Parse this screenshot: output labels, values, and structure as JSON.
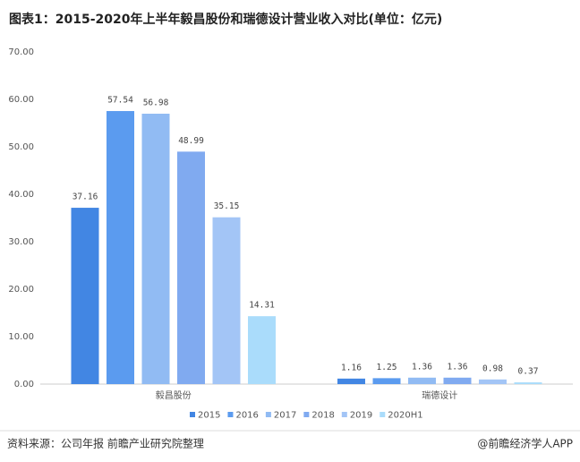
{
  "chart_data": {
    "type": "bar",
    "title": "图表1：2015-2020年上半年毅昌股份和瑞德设计营业收入对比(单位：亿元)",
    "categories": [
      "毅昌股份",
      "瑞德设计"
    ],
    "series": [
      {
        "name": "2015",
        "color": "#4286e3",
        "values": [
          37.16,
          1.16
        ]
      },
      {
        "name": "2016",
        "color": "#5b9bef",
        "values": [
          57.54,
          1.25
        ]
      },
      {
        "name": "2017",
        "color": "#91bbf3",
        "values": [
          56.98,
          1.36
        ]
      },
      {
        "name": "2018",
        "color": "#80aaf0",
        "values": [
          48.99,
          1.36
        ]
      },
      {
        "name": "2019",
        "color": "#a3c5f6",
        "values": [
          35.15,
          0.98
        ]
      },
      {
        "name": "2020H1",
        "color": "#aadcfb",
        "values": [
          14.31,
          0.37
        ]
      }
    ],
    "ylim": [
      0,
      70
    ],
    "yticks": [
      {
        "value": 0,
        "label": "0.00"
      },
      {
        "value": 10,
        "label": "10.00"
      },
      {
        "value": 20,
        "label": "20.00"
      },
      {
        "value": 30,
        "label": "30.00"
      },
      {
        "value": 40,
        "label": "40.00"
      },
      {
        "value": 50,
        "label": "50.00"
      },
      {
        "value": 60,
        "label": "60.00"
      },
      {
        "value": 70,
        "label": "70.00"
      }
    ],
    "grid": false,
    "legend": "bottom",
    "source": "资料来源：公司年报 前瞻产业研究院整理",
    "credit": "@前瞻经济学人APP"
  }
}
